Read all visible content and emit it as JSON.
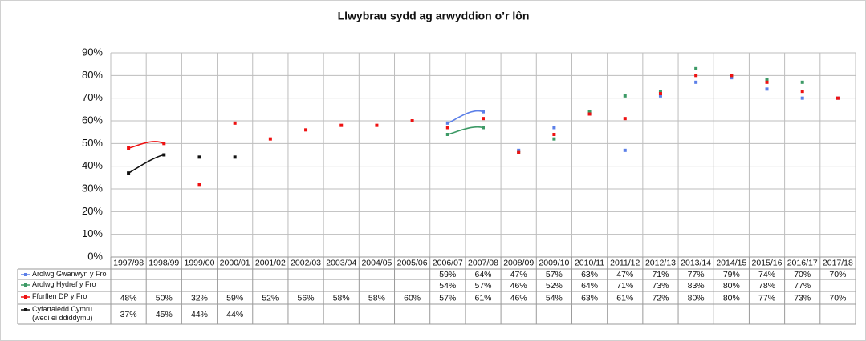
{
  "chart_data": {
    "type": "line",
    "title": "Llwybrau sydd ag arwyddion o’r lôn",
    "categories": [
      "1997/98",
      "1998/99",
      "1999/00",
      "2000/01",
      "2001/02",
      "2002/03",
      "2003/04",
      "2004/05",
      "2005/06",
      "2006/07",
      "2007/08",
      "2008/09",
      "2009/10",
      "2010/11",
      "2011/12",
      "2012/13",
      "2013/14",
      "2014/15",
      "2015/16",
      "2016/17",
      "2017/18"
    ],
    "series": [
      {
        "name": "Arolwg Gwanwyn y Fro",
        "color": "#5b7fe8",
        "values": [
          null,
          null,
          null,
          null,
          null,
          null,
          null,
          null,
          null,
          59,
          64,
          47,
          57,
          63,
          47,
          71,
          77,
          79,
          74,
          70,
          70
        ],
        "value_labels": [
          null,
          null,
          null,
          null,
          null,
          null,
          null,
          null,
          null,
          "59%",
          "64%",
          "47%",
          "57%",
          "63%",
          "47%",
          "71%",
          "77%",
          "79%",
          "74%",
          "70%",
          "70%"
        ]
      },
      {
        "name": "Arolwg Hydref y Fro",
        "color": "#3d9a66",
        "values": [
          null,
          null,
          null,
          null,
          null,
          null,
          null,
          null,
          null,
          54,
          57,
          46,
          52,
          64,
          71,
          73,
          83,
          80,
          78,
          77,
          null
        ],
        "value_labels": [
          null,
          null,
          null,
          null,
          null,
          null,
          null,
          null,
          null,
          "54%",
          "57%",
          "46%",
          "52%",
          "64%",
          "71%",
          "73%",
          "83%",
          "80%",
          "78%",
          "77%",
          null
        ]
      },
      {
        "name": "Ffurflen DP y Fro",
        "color": "#ee1111",
        "values": [
          48,
          50,
          32,
          59,
          52,
          56,
          58,
          58,
          60,
          57,
          61,
          46,
          54,
          63,
          61,
          72,
          80,
          80,
          77,
          73,
          70
        ],
        "value_labels": [
          "48%",
          "50%",
          "32%",
          "59%",
          "52%",
          "56%",
          "58%",
          "58%",
          "60%",
          "57%",
          "61%",
          "46%",
          "54%",
          "63%",
          "61%",
          "72%",
          "80%",
          "80%",
          "77%",
          "73%",
          "70%"
        ]
      },
      {
        "name": "Cyfartaledd Cymru (wedi ei ddiddymu)",
        "color": "#111111",
        "values": [
          37,
          45,
          44,
          44,
          null,
          null,
          null,
          null,
          null,
          null,
          null,
          null,
          null,
          null,
          null,
          null,
          null,
          null,
          null,
          null,
          null
        ],
        "value_labels": [
          "37%",
          "45%",
          "44%",
          "44%",
          null,
          null,
          null,
          null,
          null,
          null,
          null,
          null,
          null,
          null,
          null,
          null,
          null,
          null,
          null,
          null,
          null
        ]
      }
    ],
    "ylim": [
      0,
      90
    ],
    "yticks": [
      {
        "value": 0,
        "label": "0%"
      },
      {
        "value": 10,
        "label": "10%"
      },
      {
        "value": 20,
        "label": "20%"
      },
      {
        "value": 30,
        "label": "30%"
      },
      {
        "value": 40,
        "label": "40%"
      },
      {
        "value": 50,
        "label": "50%"
      },
      {
        "value": 60,
        "label": "60%"
      },
      {
        "value": 70,
        "label": "70%"
      },
      {
        "value": 80,
        "label": "80%"
      },
      {
        "value": 90,
        "label": "90%"
      }
    ],
    "grid": true
  }
}
